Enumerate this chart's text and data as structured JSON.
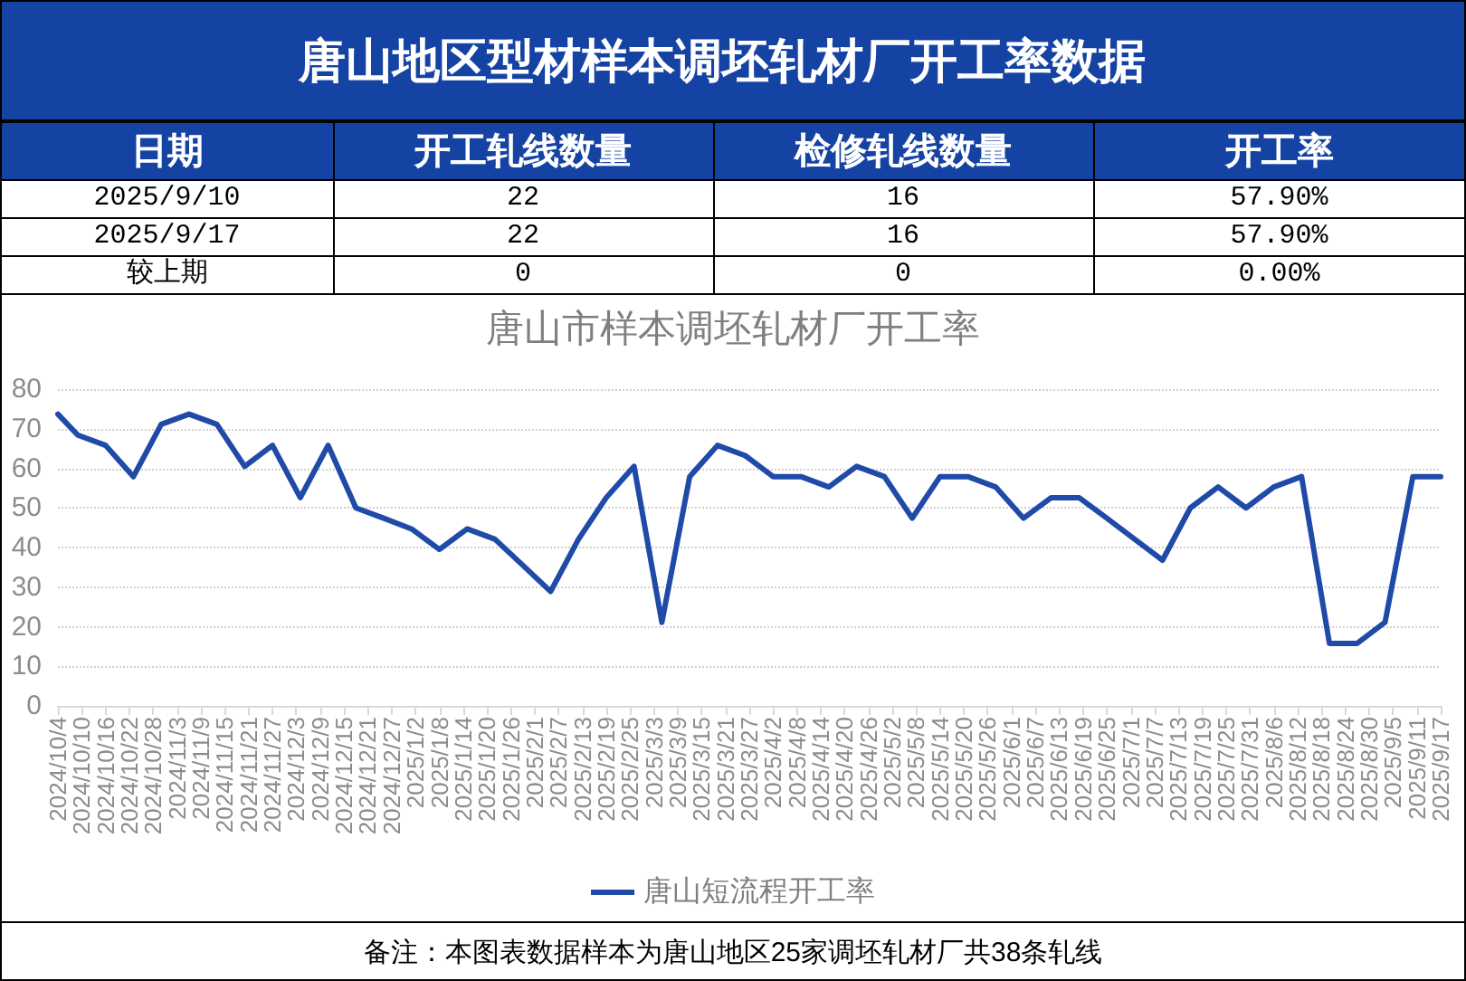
{
  "chart_data": [
    {
      "type": "other",
      "title": "唐山地区型材样本调坯轧材厂开工率数据",
      "annotations": [
        "日期",
        "开工轧线数量",
        "检修轧线数量",
        "开工率",
        "2025/9/10",
        "22",
        "16",
        "57.90%",
        "2025/9/17",
        "22",
        "16",
        "57.90%",
        "较上期",
        "0",
        "0",
        "0.00%"
      ]
    },
    {
      "type": "line",
      "title": "唐山市样本调坯轧材厂开工率",
      "x": [
        "2024-10-04",
        "2024-10-09",
        "2024-10-16",
        "2024-10-23",
        "2024-10-30",
        "2024-11-06",
        "2024-11-13",
        "2024-11-20",
        "2024-11-27",
        "2024-12-04",
        "2024-12-11",
        "2024-12-18",
        "2024-12-25",
        "2025-01-01",
        "2025-01-08",
        "2025-01-15",
        "2025-01-22",
        "2025-01-29",
        "2025-02-05",
        "2025-02-12",
        "2025-02-19",
        "2025-02-26",
        "2025-03-05",
        "2025-03-12",
        "2025-03-19",
        "2025-03-26",
        "2025-04-02",
        "2025-04-09",
        "2025-04-16",
        "2025-04-23",
        "2025-04-30",
        "2025-05-07",
        "2025-05-14",
        "2025-05-21",
        "2025-05-28",
        "2025-06-04",
        "2025-06-11",
        "2025-06-18",
        "2025-06-25",
        "2025-07-02",
        "2025-07-09",
        "2025-07-16",
        "2025-07-23",
        "2025-07-30",
        "2025-08-06",
        "2025-08-13",
        "2025-08-20",
        "2025-08-27",
        "2025-09-03",
        "2025-09-10",
        "2025-09-17"
      ],
      "series": [
        {
          "name": "唐山短流程开工率",
          "color": "#1f4aa8",
          "values": [
            73.7,
            68.4,
            65.8,
            57.9,
            71.1,
            73.7,
            71.1,
            60.5,
            65.8,
            52.6,
            65.8,
            50,
            47.4,
            44.7,
            39.5,
            44.7,
            42.1,
            35.5,
            28.9,
            42.1,
            52.6,
            60.5,
            21.1,
            57.9,
            65.8,
            63.2,
            57.9,
            57.9,
            55.3,
            60.5,
            57.9,
            47.4,
            57.9,
            57.9,
            55.3,
            47.4,
            52.6,
            52.6,
            47.4,
            42.1,
            36.8,
            50,
            55.3,
            50,
            55.3,
            57.9,
            15.8,
            15.8,
            21.1,
            57.9,
            57.9
          ]
        }
      ],
      "xlim": [
        "2024-10-04",
        "2025-09-17"
      ],
      "xticks": [
        {
          "value": "2024-10-04",
          "label": "2024/10/4"
        },
        {
          "value": "2024-10-10",
          "label": "2024/10/10"
        },
        {
          "value": "2024-10-16",
          "label": "2024/10/16"
        },
        {
          "value": "2024-10-22",
          "label": "2024/10/22"
        },
        {
          "value": "2024-10-28",
          "label": "2024/10/28"
        },
        {
          "value": "2024-11-03",
          "label": "2024/11/3"
        },
        {
          "value": "2024-11-09",
          "label": "2024/11/9"
        },
        {
          "value": "2024-11-15",
          "label": "2024/11/15"
        },
        {
          "value": "2024-11-21",
          "label": "2024/11/21"
        },
        {
          "value": "2024-11-27",
          "label": "2024/11/27"
        },
        {
          "value": "2024-12-03",
          "label": "2024/12/3"
        },
        {
          "value": "2024-12-09",
          "label": "2024/12/9"
        },
        {
          "value": "2024-12-15",
          "label": "2024/12/15"
        },
        {
          "value": "2024-12-21",
          "label": "2024/12/21"
        },
        {
          "value": "2024-12-27",
          "label": "2024/12/27"
        },
        {
          "value": "2025-01-02",
          "label": "2025/1/2"
        },
        {
          "value": "2025-01-08",
          "label": "2025/1/8"
        },
        {
          "value": "2025-01-14",
          "label": "2025/1/14"
        },
        {
          "value": "2025-01-20",
          "label": "2025/1/20"
        },
        {
          "value": "2025-01-26",
          "label": "2025/1/26"
        },
        {
          "value": "2025-02-01",
          "label": "2025/2/1"
        },
        {
          "value": "2025-02-07",
          "label": "2025/2/7"
        },
        {
          "value": "2025-02-13",
          "label": "2025/2/13"
        },
        {
          "value": "2025-02-19",
          "label": "2025/2/19"
        },
        {
          "value": "2025-02-25",
          "label": "2025/2/25"
        },
        {
          "value": "2025-03-03",
          "label": "2025/3/3"
        },
        {
          "value": "2025-03-09",
          "label": "2025/3/9"
        },
        {
          "value": "2025-03-15",
          "label": "2025/3/15"
        },
        {
          "value": "2025-03-21",
          "label": "2025/3/21"
        },
        {
          "value": "2025-03-27",
          "label": "2025/3/27"
        },
        {
          "value": "2025-04-02",
          "label": "2025/4/2"
        },
        {
          "value": "2025-04-08",
          "label": "2025/4/8"
        },
        {
          "value": "2025-04-14",
          "label": "2025/4/14"
        },
        {
          "value": "2025-04-20",
          "label": "2025/4/20"
        },
        {
          "value": "2025-04-26",
          "label": "2025/4/26"
        },
        {
          "value": "2025-05-02",
          "label": "2025/5/2"
        },
        {
          "value": "2025-05-08",
          "label": "2025/5/8"
        },
        {
          "value": "2025-05-14",
          "label": "2025/5/14"
        },
        {
          "value": "2025-05-20",
          "label": "2025/5/20"
        },
        {
          "value": "2025-05-26",
          "label": "2025/5/26"
        },
        {
          "value": "2025-06-01",
          "label": "2025/6/1"
        },
        {
          "value": "2025-06-07",
          "label": "2025/6/7"
        },
        {
          "value": "2025-06-13",
          "label": "2025/6/13"
        },
        {
          "value": "2025-06-19",
          "label": "2025/6/19"
        },
        {
          "value": "2025-06-25",
          "label": "2025/6/25"
        },
        {
          "value": "2025-07-01",
          "label": "2025/7/1"
        },
        {
          "value": "2025-07-07",
          "label": "2025/7/7"
        },
        {
          "value": "2025-07-13",
          "label": "2025/7/13"
        },
        {
          "value": "2025-07-19",
          "label": "2025/7/19"
        },
        {
          "value": "2025-07-25",
          "label": "2025/7/25"
        },
        {
          "value": "2025-07-31",
          "label": "2025/7/31"
        },
        {
          "value": "2025-08-06",
          "label": "2025/8/6"
        },
        {
          "value": "2025-08-12",
          "label": "2025/8/12"
        },
        {
          "value": "2025-08-18",
          "label": "2025/8/18"
        },
        {
          "value": "2025-08-24",
          "label": "2025/8/24"
        },
        {
          "value": "2025-08-30",
          "label": "2025/8/30"
        },
        {
          "value": "2025-09-05",
          "label": "2025/9/5"
        },
        {
          "value": "2025-09-11",
          "label": "2025/9/11"
        },
        {
          "value": "2025-09-17",
          "label": "2025/9/17"
        }
      ],
      "ylim": [
        0,
        80
      ],
      "yticks": [
        0,
        10,
        20,
        30,
        40,
        50,
        60,
        70,
        80
      ],
      "grid": "y",
      "legend": "bottom",
      "marker": "none",
      "annotations": [
        "备注：本图表数据样本为唐山地区25家调坯轧材厂共38条轧线"
      ]
    }
  ]
}
